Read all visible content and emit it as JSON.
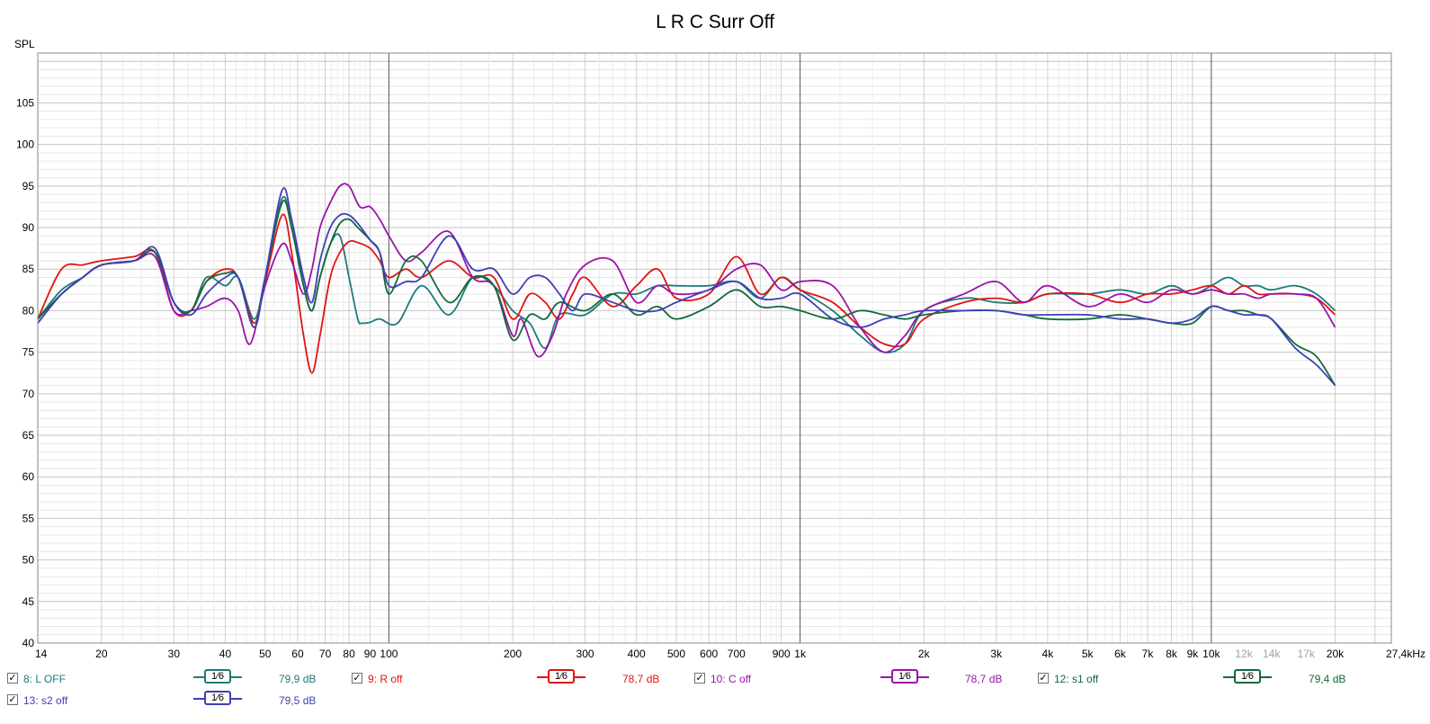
{
  "title": "L R C Surr Off",
  "chart_data": {
    "type": "line",
    "title": "L R C Surr Off",
    "ylabel": "SPL",
    "xscale": "log",
    "xlim": [
      14,
      27400
    ],
    "ylim": [
      40,
      111
    ],
    "grid": true,
    "y_ticks": [
      40,
      45,
      50,
      55,
      60,
      65,
      70,
      75,
      80,
      85,
      90,
      95,
      100,
      105
    ],
    "x_ticks": [
      {
        "f": 14,
        "label": "14",
        "grey": false
      },
      {
        "f": 20,
        "label": "20",
        "grey": false
      },
      {
        "f": 30,
        "label": "30",
        "grey": false
      },
      {
        "f": 40,
        "label": "40",
        "grey": false
      },
      {
        "f": 50,
        "label": "50",
        "grey": false
      },
      {
        "f": 60,
        "label": "60",
        "grey": false
      },
      {
        "f": 70,
        "label": "70",
        "grey": false
      },
      {
        "f": 80,
        "label": "80",
        "grey": false
      },
      {
        "f": 90,
        "label": "90",
        "grey": false
      },
      {
        "f": 100,
        "label": "100",
        "grey": false
      },
      {
        "f": 200,
        "label": "200",
        "grey": false
      },
      {
        "f": 300,
        "label": "300",
        "grey": false
      },
      {
        "f": 400,
        "label": "400",
        "grey": false
      },
      {
        "f": 500,
        "label": "500",
        "grey": false
      },
      {
        "f": 600,
        "label": "600",
        "grey": false
      },
      {
        "f": 700,
        "label": "700",
        "grey": false
      },
      {
        "f": 900,
        "label": "900",
        "grey": false
      },
      {
        "f": 1000,
        "label": "1k",
        "grey": false
      },
      {
        "f": 2000,
        "label": "2k",
        "grey": false
      },
      {
        "f": 3000,
        "label": "3k",
        "grey": false
      },
      {
        "f": 4000,
        "label": "4k",
        "grey": false
      },
      {
        "f": 5000,
        "label": "5k",
        "grey": false
      },
      {
        "f": 6000,
        "label": "6k",
        "grey": false
      },
      {
        "f": 7000,
        "label": "7k",
        "grey": false
      },
      {
        "f": 8000,
        "label": "8k",
        "grey": false
      },
      {
        "f": 9000,
        "label": "9k",
        "grey": false
      },
      {
        "f": 10000,
        "label": "10k",
        "grey": false
      },
      {
        "f": 12000,
        "label": "12k",
        "grey": true
      },
      {
        "f": 14000,
        "label": "14k",
        "grey": true
      },
      {
        "f": 17000,
        "label": "17k",
        "grey": true
      },
      {
        "f": 20000,
        "label": "20k",
        "grey": false
      },
      {
        "f": 27400,
        "label": "27,4kHz",
        "grey": false
      }
    ],
    "series": [
      {
        "name": "8: L OFF",
        "color": "#1e7b7b",
        "x": [
          14,
          16,
          18,
          20,
          24,
          27,
          30,
          33,
          36,
          40,
          43,
          47,
          50,
          55,
          58,
          62,
          65,
          68,
          72,
          76,
          80,
          84,
          86,
          90,
          95,
          105,
          120,
          140,
          160,
          180,
          200,
          220,
          240,
          260,
          300,
          350,
          400,
          450,
          500,
          600,
          700,
          800,
          900,
          1000,
          1200,
          1400,
          1600,
          1800,
          2000,
          2500,
          3000,
          3500,
          4000,
          5000,
          6000,
          7000,
          8000,
          9000,
          10000,
          11000,
          12000,
          13000,
          14000,
          16000,
          18000,
          20000
        ],
        "y": [
          79,
          82.5,
          84,
          85.5,
          86,
          87,
          81,
          80,
          84,
          83,
          84,
          79,
          84,
          93.5,
          90,
          83,
          80,
          84,
          88,
          89,
          84,
          79,
          78.5,
          78.6,
          79,
          78.5,
          83,
          79.5,
          84,
          83,
          80,
          78.5,
          75.5,
          79.5,
          79.5,
          82,
          82,
          83,
          83,
          83,
          83.5,
          81.5,
          84,
          82.5,
          80,
          77,
          75,
          76,
          80,
          81.5,
          81,
          81,
          82,
          82,
          82.5,
          82,
          83,
          82,
          83,
          84,
          83,
          83,
          82.5,
          83,
          82,
          80
        ]
      },
      {
        "name": "9: R off",
        "color": "#e01414",
        "x": [
          14,
          16,
          18,
          20,
          24,
          27,
          30,
          33,
          36,
          40,
          43,
          47,
          50,
          55,
          58,
          62,
          65,
          68,
          72,
          76,
          80,
          84,
          90,
          95,
          100,
          110,
          120,
          140,
          160,
          180,
          200,
          220,
          240,
          260,
          280,
          300,
          350,
          400,
          450,
          500,
          600,
          700,
          800,
          900,
          1000,
          1200,
          1400,
          1600,
          1800,
          2000,
          2500,
          3000,
          3500,
          4000,
          5000,
          6000,
          7000,
          8000,
          9000,
          10000,
          11000,
          12000,
          13000,
          14000,
          16000,
          18000,
          20000
        ],
        "y": [
          79,
          85,
          85.5,
          86,
          86.5,
          87,
          80,
          80,
          83.5,
          85,
          84,
          78.5,
          83.5,
          91.5,
          87,
          77,
          72.5,
          77,
          84,
          87,
          88.3,
          88.2,
          87.5,
          86,
          84,
          85,
          84,
          86,
          84,
          84,
          79,
          82,
          81,
          79,
          82,
          84,
          80.5,
          83,
          85,
          81.5,
          82,
          86.5,
          82,
          84,
          82.5,
          81,
          78,
          76,
          76,
          79,
          81,
          81.5,
          81,
          82,
          82,
          81,
          82,
          82,
          82.5,
          83,
          82,
          83,
          82,
          82,
          82,
          81.5,
          79.5
        ]
      },
      {
        "name": "10: C off",
        "color": "#9a14a8",
        "x": [
          14,
          16,
          18,
          20,
          24,
          27,
          30,
          33,
          36,
          40,
          43,
          46,
          50,
          55,
          58,
          62,
          65,
          68,
          72,
          76,
          80,
          85,
          90,
          95,
          100,
          110,
          120,
          140,
          160,
          180,
          200,
          210,
          230,
          250,
          270,
          300,
          350,
          400,
          450,
          500,
          600,
          700,
          800,
          900,
          1000,
          1200,
          1400,
          1600,
          1800,
          2000,
          2500,
          3000,
          3500,
          4000,
          5000,
          6000,
          7000,
          8000,
          9000,
          10000,
          11000,
          12000,
          13000,
          14000,
          16000,
          18000,
          20000
        ],
        "y": [
          79,
          82,
          84,
          85.5,
          86,
          86.5,
          80,
          80,
          80.5,
          81.5,
          80,
          76,
          83,
          88,
          86,
          82,
          85,
          90,
          93,
          95,
          95,
          92.5,
          92.5,
          91,
          89,
          86,
          87,
          89.5,
          84,
          83,
          77,
          79,
          74.5,
          77,
          82,
          85.5,
          86,
          81,
          83,
          82,
          82.5,
          85,
          85.5,
          82.5,
          83.5,
          83,
          78,
          75,
          77,
          80,
          82,
          83.5,
          81,
          83,
          80.5,
          82,
          81,
          82.5,
          82,
          82.5,
          82,
          82,
          81.5,
          82,
          82,
          81.5,
          78
        ]
      },
      {
        "name": "12: s1 off",
        "color": "#0f6b3a",
        "x": [
          14,
          16,
          18,
          20,
          24,
          27,
          30,
          33,
          36,
          40,
          43,
          47,
          50,
          55,
          58,
          62,
          65,
          68,
          72,
          76,
          80,
          84,
          90,
          95,
          100,
          110,
          120,
          140,
          160,
          180,
          200,
          220,
          240,
          260,
          300,
          350,
          400,
          450,
          500,
          600,
          700,
          800,
          900,
          1000,
          1200,
          1400,
          1600,
          1800,
          2000,
          2500,
          3000,
          3500,
          4000,
          5000,
          6000,
          7000,
          8000,
          9000,
          10000,
          11000,
          12000,
          13000,
          14000,
          16000,
          18000,
          20000
        ],
        "y": [
          79,
          82,
          84,
          85.5,
          86,
          87,
          81,
          80,
          83.5,
          84.5,
          84,
          78,
          84,
          93,
          90,
          83,
          80,
          84,
          88,
          90.5,
          91,
          90,
          88.5,
          87,
          82,
          86,
          86,
          81,
          84,
          83,
          76.5,
          79.5,
          79,
          81,
          80,
          82,
          79.5,
          80.5,
          79,
          80.5,
          82.5,
          80.5,
          80.5,
          80,
          79,
          80,
          79.5,
          79,
          79.5,
          80,
          80,
          79.5,
          79,
          79,
          79.5,
          79,
          78.5,
          78.5,
          80.5,
          80,
          80,
          79.5,
          79,
          76,
          74.5,
          71
        ]
      },
      {
        "name": "13: s2 off",
        "color": "#3f3fb8",
        "x": [
          14,
          16,
          18,
          20,
          24,
          27,
          30,
          33,
          36,
          40,
          43,
          47,
          50,
          55,
          58,
          62,
          65,
          68,
          72,
          76,
          80,
          84,
          90,
          95,
          100,
          110,
          120,
          140,
          160,
          180,
          200,
          220,
          240,
          260,
          280,
          300,
          350,
          400,
          450,
          500,
          600,
          700,
          800,
          900,
          1000,
          1200,
          1400,
          1600,
          1800,
          2000,
          2500,
          3000,
          3500,
          4000,
          5000,
          6000,
          7000,
          8000,
          9000,
          10000,
          11000,
          12000,
          13000,
          14000,
          16000,
          18000,
          20000
        ],
        "y": [
          78.5,
          82,
          84,
          85.5,
          86,
          87.5,
          81,
          79.5,
          82,
          84,
          84,
          78,
          84,
          94.5,
          91,
          84,
          81,
          86,
          90,
          91.5,
          91.5,
          90.5,
          88.5,
          87,
          83,
          83.5,
          84,
          89,
          85,
          85,
          82,
          84,
          84,
          82,
          80,
          82,
          81,
          80,
          80,
          81,
          82.5,
          83.5,
          81.5,
          81.5,
          82,
          79,
          78,
          79,
          79.5,
          80,
          80,
          80,
          79.5,
          79.5,
          79.5,
          79,
          79,
          78.5,
          79,
          80.5,
          80,
          79.5,
          79.5,
          79,
          75.5,
          73.5,
          71
        ]
      }
    ]
  },
  "legend": [
    [
      {
        "label": "8: L OFF",
        "level": "79,9 dB",
        "smoothing": "1⁄6",
        "color": "#1e7b7b"
      },
      {
        "label": "9: R off",
        "level": "78,7 dB",
        "smoothing": "1⁄6",
        "color": "#e01414"
      },
      {
        "label": "10: C off",
        "level": "78,7 dB",
        "smoothing": "1⁄6",
        "color": "#9a14a8"
      },
      {
        "label": "12: s1 off",
        "level": "79,4 dB",
        "smoothing": "1⁄6",
        "color": "#0f6b3a"
      }
    ],
    [
      {
        "label": "13: s2 off",
        "level": "79,5 dB",
        "smoothing": "1⁄6",
        "color": "#3f3fb8"
      }
    ]
  ],
  "checkbox_mark": "✓"
}
